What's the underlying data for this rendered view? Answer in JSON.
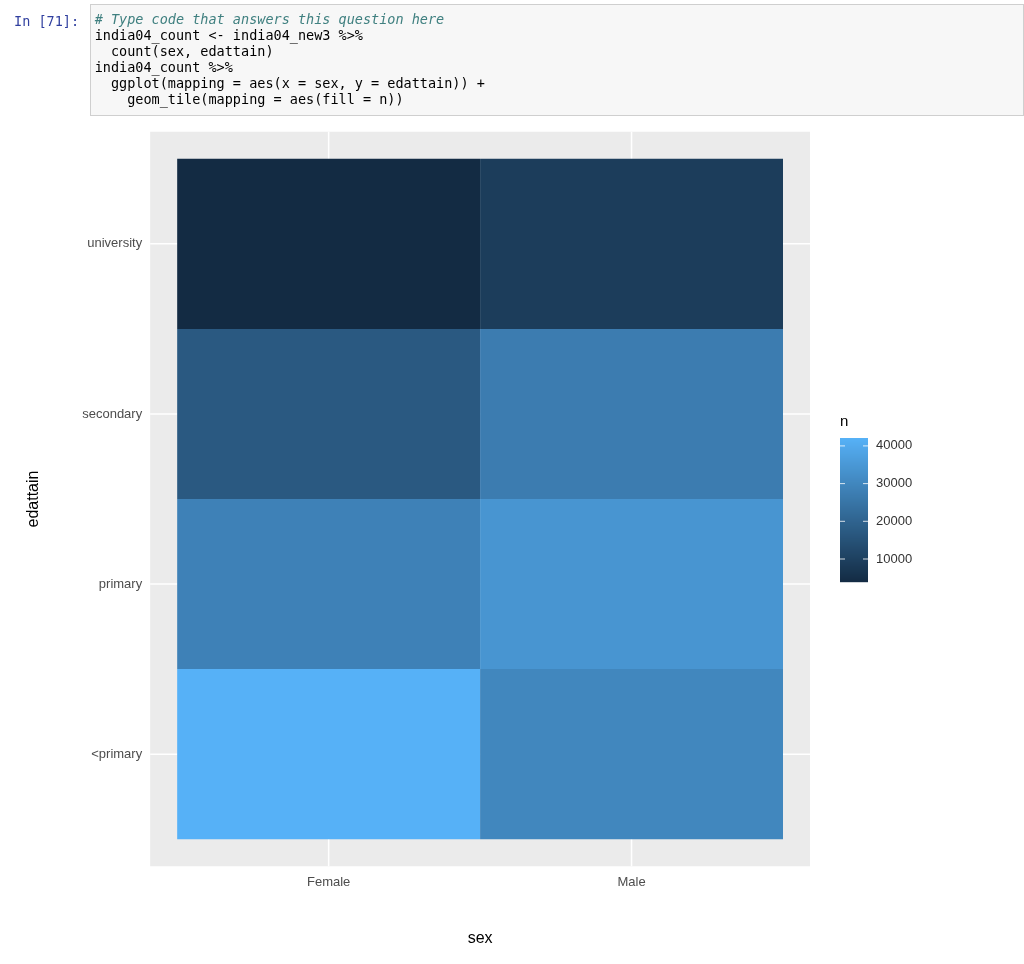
{
  "chart_data": {
    "type": "heatmap",
    "xlabel": "sex",
    "ylabel": "edattain",
    "clabel": "n",
    "categories": [
      "Female",
      "Male"
    ],
    "y_categories": [
      "university",
      "secondary",
      "primary",
      "<primary"
    ],
    "cells": [
      [
        4000,
        9000
      ],
      [
        17000,
        27000
      ],
      [
        28500,
        34000
      ],
      [
        42000,
        30000
      ]
    ],
    "clim": [
      3900,
      42100
    ],
    "cticks": [
      10000,
      20000,
      30000,
      40000
    ],
    "grid": true,
    "annotations": [
      "In [71]:",
      "# Type code that answers this question here",
      "india04_count <- india04_new3 %>%",
      "  count(sex, edattain)",
      "india04_count %>%",
      "  ggplot(mapping = aes(x = sex, y = edattain)) +",
      "    geom_tile(mapping = aes(fill = n))"
    ]
  }
}
